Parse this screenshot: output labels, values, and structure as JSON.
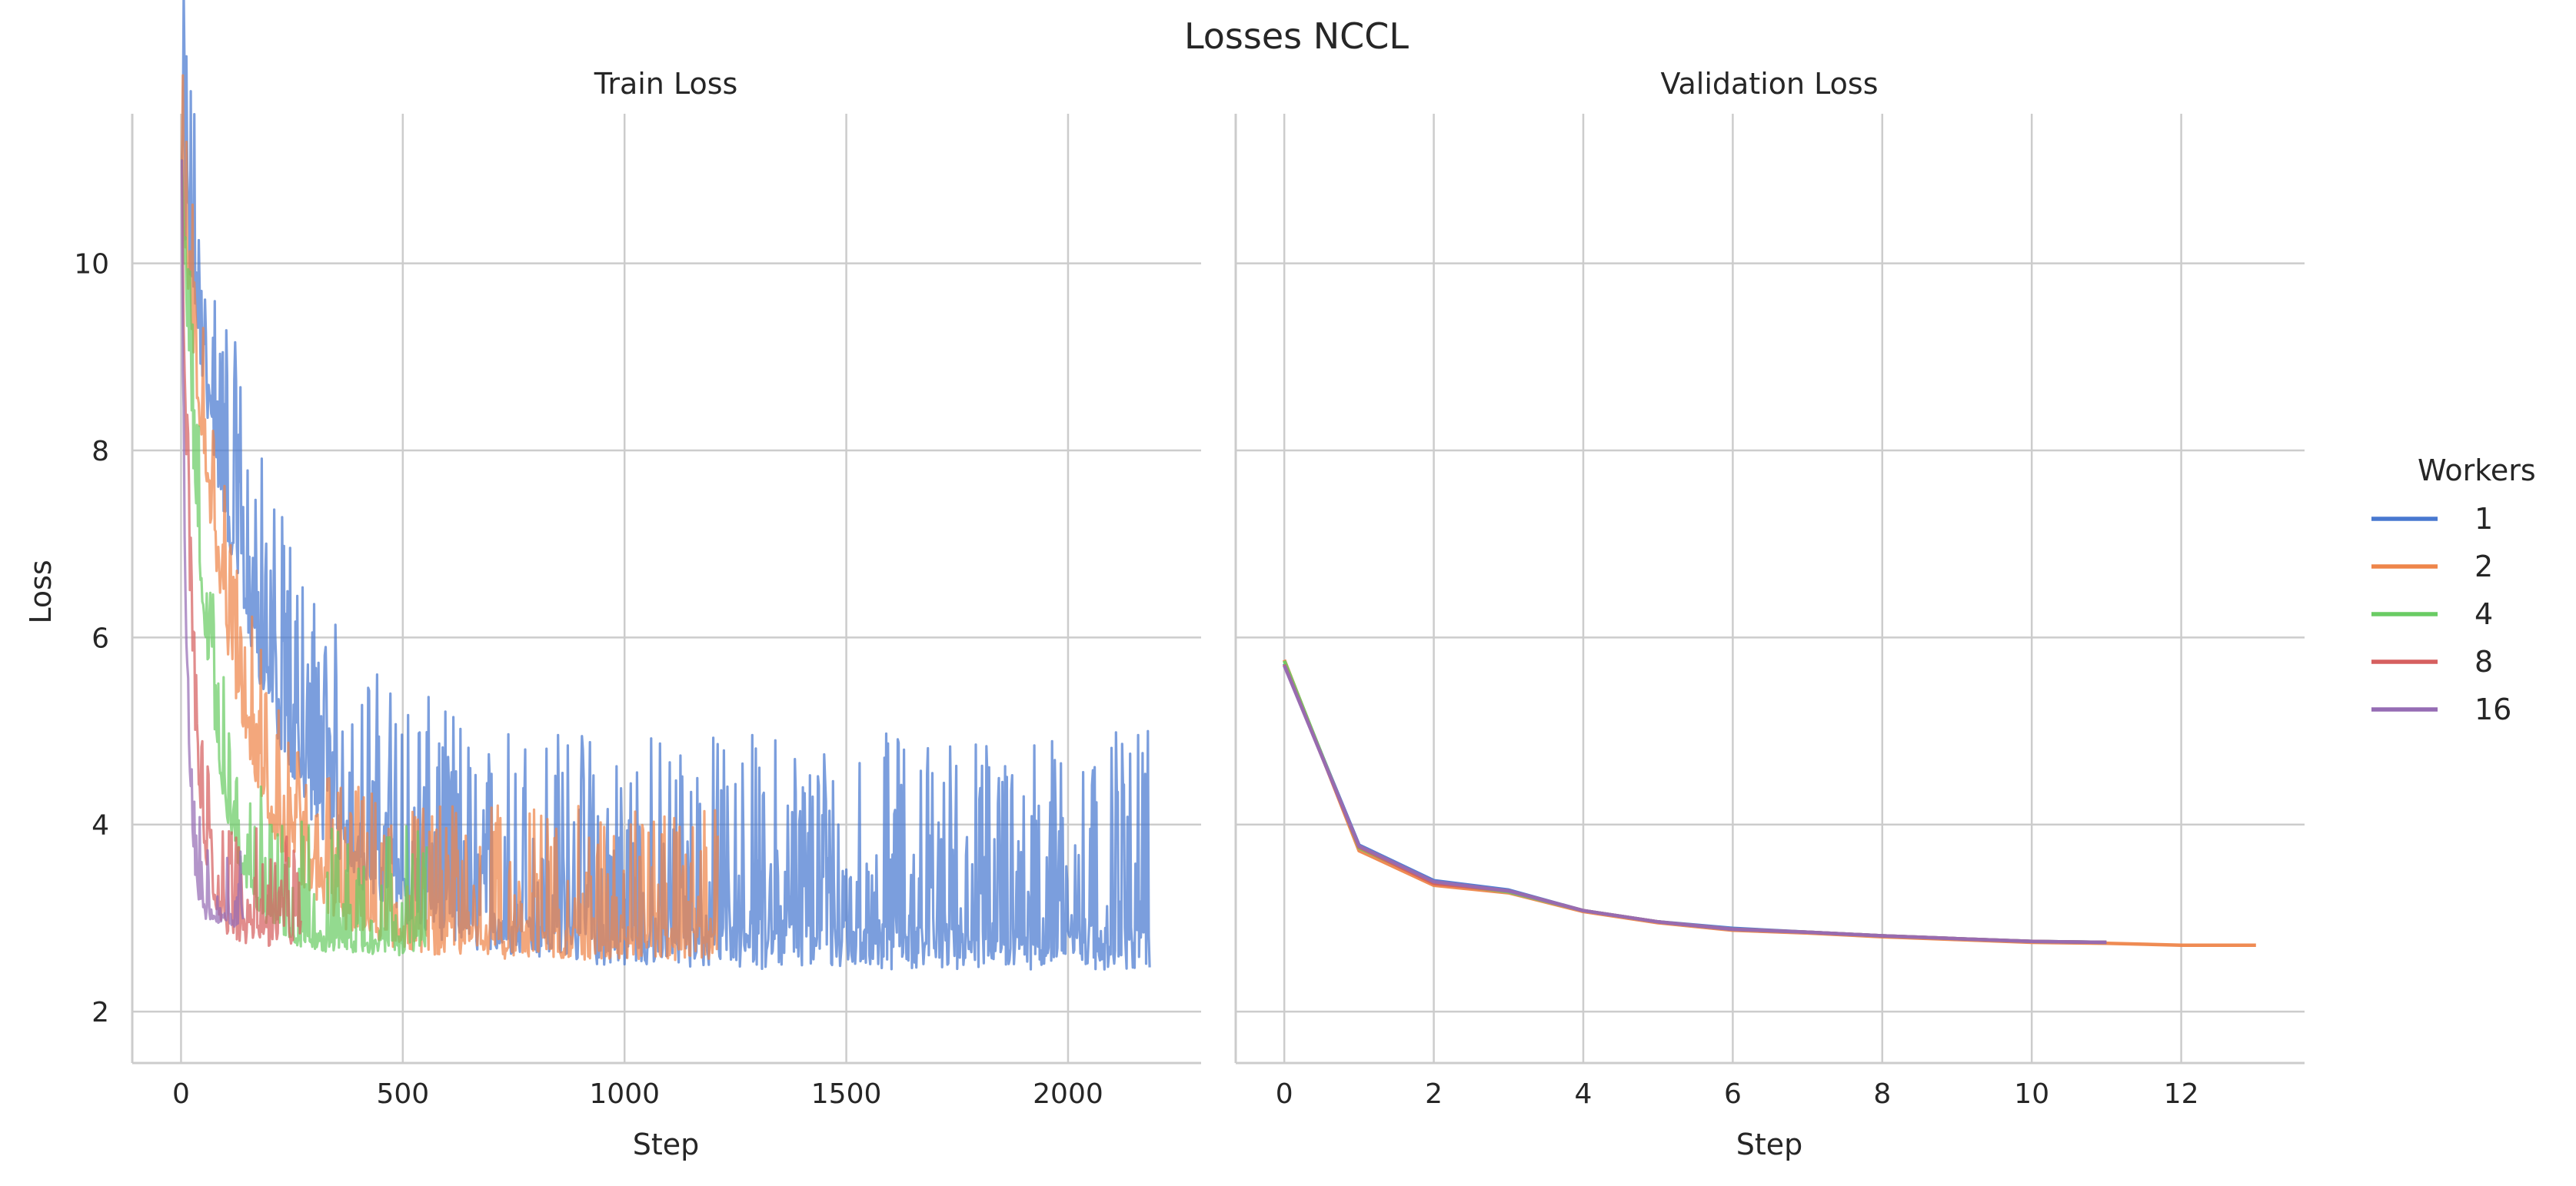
{
  "figure_title": "Losses NCCL",
  "chart_data": [
    {
      "type": "line",
      "title": "Train Loss",
      "xlabel": "Step",
      "ylabel": "Loss",
      "xlim": [
        -110,
        2300
      ],
      "ylim": [
        1.45,
        11.6
      ],
      "xticks": [
        0,
        500,
        1000,
        1500,
        2000
      ],
      "yticks": [
        2,
        4,
        6,
        8,
        10
      ],
      "grid": true,
      "series": [
        {
          "name": "1",
          "color": "#4878d0",
          "steps": 2185,
          "start": 11.1,
          "floor": 2.9,
          "decay": 180,
          "band_low": 0.45,
          "band_high": 2.1,
          "min_value": 1.9
        },
        {
          "name": "2",
          "color": "#ee854a",
          "steps": 1210,
          "start": 11.1,
          "floor": 2.9,
          "decay": 115,
          "band_low": 0.35,
          "band_high": 1.3,
          "min_value": 2.45
        },
        {
          "name": "4",
          "color": "#6acc64",
          "steps": 555,
          "start": 11.1,
          "floor": 2.8,
          "decay": 60,
          "band_low": 0.2,
          "band_high": 1.2,
          "min_value": 2.6
        },
        {
          "name": "8",
          "color": "#d65f5f",
          "steps": 270,
          "start": 11.1,
          "floor": 2.95,
          "decay": 25,
          "band_low": 0.25,
          "band_high": 1.0,
          "min_value": 2.65
        },
        {
          "name": "16",
          "color": "#956cb4",
          "steps": 140,
          "start": 11.1,
          "floor": 3.05,
          "decay": 12,
          "band_low": 0.15,
          "band_high": 0.8,
          "min_value": 2.9
        }
      ]
    },
    {
      "type": "line",
      "title": "Validation Loss",
      "xlabel": "Step",
      "xlim": [
        -0.65,
        13.65
      ],
      "ylim": [
        1.45,
        11.6
      ],
      "xticks": [
        0,
        2,
        4,
        6,
        8,
        10,
        12
      ],
      "yticks": [
        2,
        4,
        6,
        8,
        10
      ],
      "grid": true,
      "series": [
        {
          "name": "1",
          "color": "#4878d0",
          "x": [
            0,
            1,
            2,
            3,
            4,
            5,
            6,
            7,
            8,
            9,
            10,
            11
          ],
          "y": [
            5.72,
            3.78,
            3.4,
            3.3,
            3.08,
            2.96,
            2.89,
            2.85,
            2.81,
            2.78,
            2.75,
            2.74
          ]
        },
        {
          "name": "2",
          "color": "#ee854a",
          "x": [
            0,
            1,
            2,
            3,
            4,
            5,
            6,
            7,
            8,
            9,
            10,
            11,
            12,
            13
          ],
          "y": [
            5.76,
            3.72,
            3.35,
            3.27,
            3.07,
            2.95,
            2.87,
            2.84,
            2.8,
            2.77,
            2.74,
            2.73,
            2.71,
            2.71
          ]
        },
        {
          "name": "4",
          "color": "#6acc64",
          "x": [
            0,
            1,
            2,
            3,
            4,
            5,
            6,
            7,
            8,
            9,
            10,
            11
          ],
          "y": [
            5.75,
            3.75,
            3.38,
            3.28,
            3.08,
            2.96,
            2.88,
            2.85,
            2.81,
            2.78,
            2.75,
            2.74
          ]
        },
        {
          "name": "8",
          "color": "#d65f5f",
          "x": [
            0,
            1,
            2,
            3,
            4,
            5,
            6,
            7,
            8,
            9,
            10,
            11
          ],
          "y": [
            5.71,
            3.76,
            3.37,
            3.29,
            3.08,
            2.96,
            2.88,
            2.85,
            2.81,
            2.78,
            2.75,
            2.74
          ]
        },
        {
          "name": "16",
          "color": "#956cb4",
          "x": [
            0,
            1,
            2,
            3,
            4,
            5,
            6,
            7,
            8,
            9,
            10,
            11
          ],
          "y": [
            5.7,
            3.77,
            3.39,
            3.29,
            3.08,
            2.96,
            2.88,
            2.85,
            2.81,
            2.78,
            2.75,
            2.74
          ]
        }
      ]
    }
  ],
  "legend": {
    "title": "Workers",
    "placement": "right",
    "items": [
      {
        "label": "1",
        "color": "#4878d0"
      },
      {
        "label": "2",
        "color": "#ee854a"
      },
      {
        "label": "4",
        "color": "#6acc64"
      },
      {
        "label": "8",
        "color": "#d65f5f"
      },
      {
        "label": "16",
        "color": "#956cb4"
      }
    ]
  }
}
